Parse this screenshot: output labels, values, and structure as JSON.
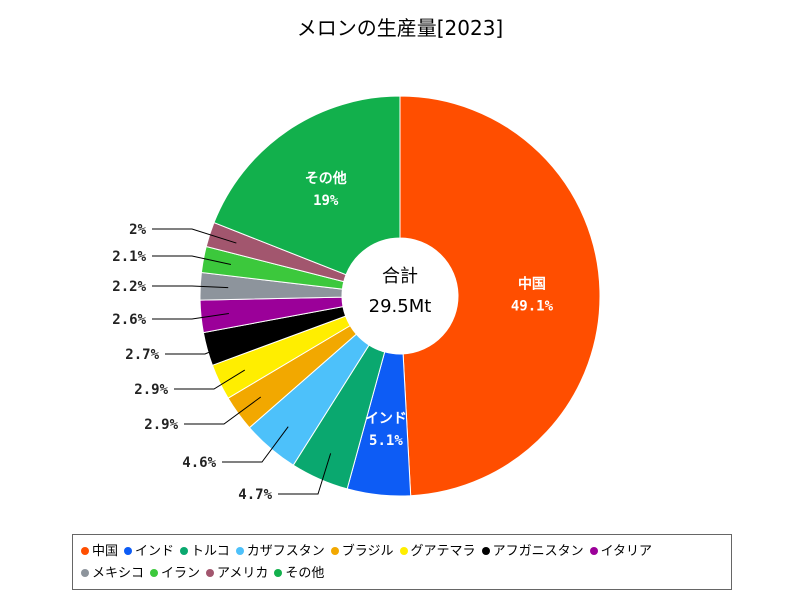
{
  "chart_data": {
    "type": "pie",
    "title": "メロンの生産量[2023]",
    "center": {
      "label": "合計",
      "value": "29.5Mt"
    },
    "slices": [
      {
        "name": "中国",
        "value": 49.1,
        "label": "49.1%",
        "color": "#ff4e00"
      },
      {
        "name": "インド",
        "value": 5.1,
        "label": "5.1%",
        "color": "#0d5cf5"
      },
      {
        "name": "トルコ",
        "value": 4.7,
        "label": "4.7%",
        "color": "#0aa86f"
      },
      {
        "name": "カザフスタン",
        "value": 4.6,
        "label": "4.6%",
        "color": "#4dc1fa"
      },
      {
        "name": "ブラジル",
        "value": 2.9,
        "label": "2.9%",
        "color": "#f2a800"
      },
      {
        "name": "グアテマラ",
        "value": 2.9,
        "label": "2.9%",
        "color": "#ffee00"
      },
      {
        "name": "アフガニスタン",
        "value": 2.7,
        "label": "2.7%",
        "color": "#000000"
      },
      {
        "name": "イタリア",
        "value": 2.6,
        "label": "2.6%",
        "color": "#9b0099"
      },
      {
        "name": "メキシコ",
        "value": 2.2,
        "label": "2.2%",
        "color": "#8d949c"
      },
      {
        "name": "イラン",
        "value": 2.1,
        "label": "2.1%",
        "color": "#3cc83c"
      },
      {
        "name": "アメリカ",
        "value": 2.0,
        "label": "2%",
        "color": "#a2566e"
      },
      {
        "name": "その他",
        "value": 19.0,
        "label": "19%",
        "color": "#12b04c"
      }
    ],
    "legend_position": "bottom"
  }
}
